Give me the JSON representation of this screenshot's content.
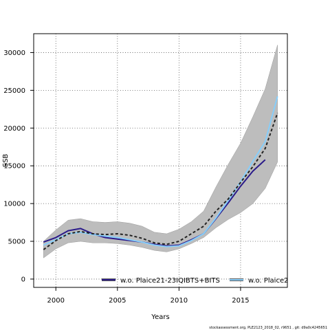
{
  "chart_data": {
    "type": "line",
    "xlabel": "Years",
    "ylabel": "SSB",
    "xlim": [
      1998.2,
      2018.8
    ],
    "ylim": [
      -1100,
      32500
    ],
    "x_ticks": [
      2000,
      2005,
      2010,
      2015
    ],
    "x_tick_labels": [
      "2000",
      "2005",
      "2010",
      "2015"
    ],
    "y_ticks": [
      0,
      5000,
      10000,
      15000,
      20000,
      25000,
      30000
    ],
    "y_tick_labels": [
      "0",
      "5000",
      "10000",
      "15000",
      "20000",
      "25000",
      "30000"
    ],
    "grid": "dotted",
    "legend_position": "bottom",
    "footer": "stockassessment.org, PLE2123_2018_02, r9651 , git: d9a0c4245651",
    "confidence_band": {
      "color": "#bdbdbd",
      "x": [
        1999,
        2000,
        2001,
        2002,
        2003,
        2004,
        2005,
        2006,
        2007,
        2008,
        2009,
        2010,
        2011,
        2012,
        2013,
        2014,
        2015,
        2016,
        2017,
        2018
      ],
      "upper": [
        5000,
        6500,
        7800,
        8000,
        7600,
        7500,
        7600,
        7400,
        7000,
        6200,
        6000,
        6600,
        7600,
        9000,
        12200,
        15200,
        18000,
        21500,
        25200,
        31000
      ],
      "lower": [
        2800,
        4000,
        4800,
        5000,
        4800,
        4800,
        4700,
        4500,
        4200,
        3800,
        3600,
        4000,
        4700,
        5500,
        6800,
        7900,
        8800,
        10000,
        12000,
        15500
      ]
    },
    "series": [
      {
        "color": "#222222",
        "style": "dashed",
        "x": [
          1999,
          2000,
          2001,
          2002,
          2003,
          2004,
          2005,
          2006,
          2007,
          2008,
          2009,
          2010,
          2011,
          2012,
          2013,
          2014,
          2015,
          2016,
          2017,
          2018
        ],
        "values": [
          3900,
          5100,
          6000,
          6300,
          6000,
          5900,
          6000,
          5800,
          5400,
          4800,
          4600,
          5000,
          6000,
          7000,
          9000,
          10600,
          12800,
          14900,
          17300,
          22000
        ]
      },
      {
        "name": "w.o. Plaice21-23IQIBTS+BITS",
        "color": "#2a1a8a",
        "style": "solid",
        "x": [
          1999,
          2000,
          2001,
          2002,
          2003,
          2004,
          2005,
          2006,
          2007,
          2008,
          2009,
          2010,
          2011,
          2012,
          2013,
          2014,
          2015,
          2016,
          2017
        ],
        "values": [
          4900,
          5500,
          6400,
          6700,
          6000,
          5500,
          5300,
          5100,
          4900,
          4600,
          4400,
          4500,
          5200,
          6000,
          8000,
          10100,
          12300,
          14300,
          15800
        ]
      },
      {
        "name": "w.o. Plaice2",
        "color": "#87cefa",
        "style": "solid",
        "x": [
          1999,
          2000,
          2001,
          2002,
          2003,
          2004,
          2005,
          2006,
          2007,
          2008,
          2009,
          2010,
          2011,
          2012,
          2013,
          2014,
          2015,
          2016,
          2017,
          2018
        ],
        "values": [
          4500,
          5200,
          6000,
          6200,
          5900,
          5700,
          5500,
          5200,
          4900,
          4500,
          4300,
          4400,
          5100,
          6000,
          8100,
          10400,
          12900,
          15600,
          18200,
          24200
        ]
      }
    ]
  }
}
